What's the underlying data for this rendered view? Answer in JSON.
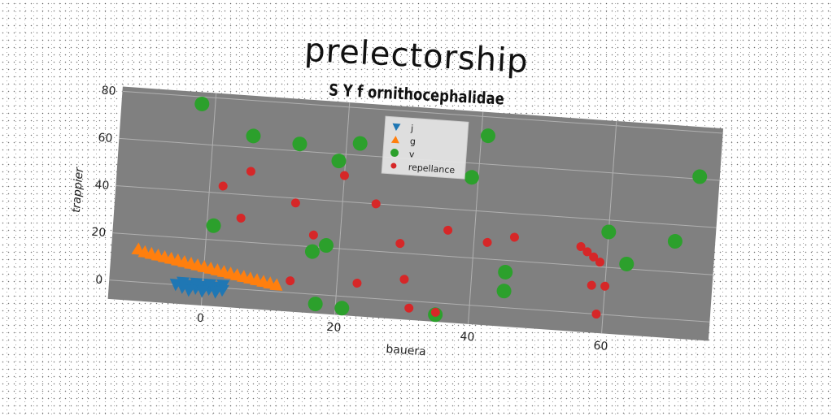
{
  "chart_data": {
    "type": "scatter",
    "title": "prelectorship",
    "subtitle": "S Y f ornithocephalidae",
    "xlabel": "bauera",
    "ylabel": "trappier",
    "xlim": [
      -14,
      76
    ],
    "ylim": [
      -8,
      82
    ],
    "xticks": [
      0,
      20,
      40,
      60
    ],
    "yticks": [
      0,
      20,
      40,
      60,
      80
    ],
    "grid": true,
    "legend_position": "top-center",
    "series": [
      {
        "name": "j",
        "marker": "triangle-down",
        "color": "#1f77b4",
        "points": [
          [
            -4,
            0
          ],
          [
            -3,
            -1
          ],
          [
            -2,
            0
          ],
          [
            -1,
            -1
          ],
          [
            0,
            0
          ],
          [
            1,
            -1
          ],
          [
            2,
            0
          ],
          [
            3,
            -1
          ],
          [
            -3,
            1
          ],
          [
            -1,
            1
          ],
          [
            1,
            1
          ],
          [
            3,
            1
          ],
          [
            -2,
            -2
          ],
          [
            0,
            -2
          ],
          [
            2,
            -2
          ]
        ]
      },
      {
        "name": "g",
        "marker": "triangle-up",
        "color": "#ff7f0e",
        "points": [
          [
            -10,
            14
          ],
          [
            -9,
            13
          ],
          [
            -8,
            12.5
          ],
          [
            -7,
            12
          ],
          [
            -6,
            11.5
          ],
          [
            -5,
            11
          ],
          [
            -4,
            10.5
          ],
          [
            -3,
            10
          ],
          [
            -2,
            9.5
          ],
          [
            -1,
            9
          ],
          [
            0,
            8.5
          ],
          [
            1,
            8
          ],
          [
            2,
            7.5
          ],
          [
            3,
            7
          ],
          [
            4,
            6.5
          ],
          [
            5,
            6
          ],
          [
            6,
            5.5
          ],
          [
            7,
            5
          ],
          [
            8,
            4.5
          ],
          [
            9,
            4
          ],
          [
            10,
            3.5
          ],
          [
            11,
            3
          ]
        ]
      },
      {
        "name": "v",
        "marker": "circle",
        "color": "#2ca02c",
        "points": [
          [
            -2,
            77
          ],
          [
            6,
            65
          ],
          [
            13,
            63
          ],
          [
            19,
            57
          ],
          [
            22,
            65
          ],
          [
            41,
            72
          ],
          [
            39,
            54
          ],
          [
            73,
            61
          ],
          [
            60,
            35
          ],
          [
            70,
            33
          ],
          [
            63,
            22
          ],
          [
            1,
            26
          ],
          [
            18,
            21
          ],
          [
            16,
            18
          ],
          [
            45,
            15
          ],
          [
            45,
            7
          ],
          [
            17,
            -4
          ],
          [
            21,
            -5
          ],
          [
            35,
            -5
          ]
        ]
      },
      {
        "name": "repellance",
        "marker": "circle-small",
        "color": "#d62728",
        "points": [
          [
            6,
            50
          ],
          [
            20,
            51
          ],
          [
            2,
            43
          ],
          [
            13,
            38
          ],
          [
            25,
            40
          ],
          [
            5,
            30
          ],
          [
            36,
            31
          ],
          [
            46,
            30
          ],
          [
            16,
            25
          ],
          [
            29,
            24
          ],
          [
            42,
            27
          ],
          [
            56,
            28
          ],
          [
            57,
            26
          ],
          [
            58,
            24
          ],
          [
            59,
            22
          ],
          [
            58,
            12
          ],
          [
            60,
            12
          ],
          [
            30,
            9
          ],
          [
            23,
            6
          ],
          [
            13,
            5
          ],
          [
            59,
            0
          ],
          [
            31,
            -3
          ],
          [
            35,
            -4
          ]
        ]
      }
    ]
  }
}
